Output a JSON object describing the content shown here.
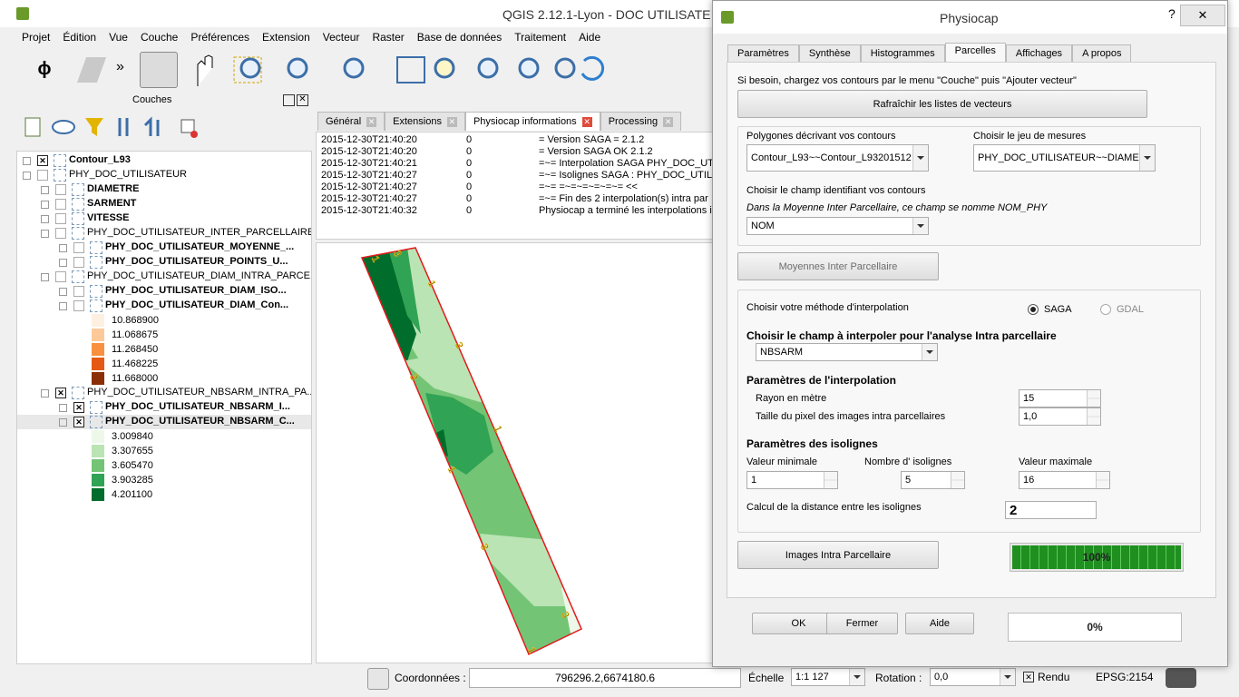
{
  "qgis": {
    "title": "QGIS 2.12.1-Lyon - DOC UTILISATE",
    "menu": [
      "Projet",
      "Édition",
      "Vue",
      "Couche",
      "Préférences",
      "Extension",
      "Vecteur",
      "Raster",
      "Base de données",
      "Traitement",
      "Aide"
    ],
    "toolbar": {
      "phi": "ϕ",
      "more": "»"
    },
    "layers_title": "Couches",
    "layers": [
      {
        "label": "Contour_L93",
        "depth": 0,
        "bold": true,
        "checked": true
      },
      {
        "label": "PHY_DOC_UTILISATEUR",
        "depth": 0,
        "bold": false,
        "checked": false
      },
      {
        "label": "DIAMETRE",
        "depth": 1,
        "bold": true,
        "checked": false
      },
      {
        "label": "SARMENT",
        "depth": 1,
        "bold": true,
        "checked": false
      },
      {
        "label": "VITESSE",
        "depth": 1,
        "bold": true,
        "checked": false
      },
      {
        "label": "PHY_DOC_UTILISATEUR_INTER_PARCELLAIRE",
        "depth": 1,
        "bold": false,
        "checked": false
      },
      {
        "label": "PHY_DOC_UTILISATEUR_MOYENNE_...",
        "depth": 2,
        "bold": true,
        "checked": false
      },
      {
        "label": "PHY_DOC_UTILISATEUR_POINTS_U...",
        "depth": 2,
        "bold": true,
        "checked": false
      },
      {
        "label": "PHY_DOC_UTILISATEUR_DIAM_INTRA_PARCE...",
        "depth": 1,
        "bold": false,
        "checked": false
      },
      {
        "label": "PHY_DOC_UTILISATEUR_DIAM_ISO...",
        "depth": 2,
        "bold": true,
        "checked": false
      },
      {
        "label": "PHY_DOC_UTILISATEUR_DIAM_Con...",
        "depth": 2,
        "bold": true,
        "checked": false
      },
      {
        "label": "10.868900",
        "swatch": "#fef0e1"
      },
      {
        "label": "11.068675",
        "swatch": "#fdc999"
      },
      {
        "label": "11.268450",
        "swatch": "#f9903f"
      },
      {
        "label": "11.468225",
        "swatch": "#e45a14"
      },
      {
        "label": "11.668000",
        "swatch": "#8a2e05"
      },
      {
        "label": "PHY_DOC_UTILISATEUR_NBSARM_INTRA_PA...",
        "depth": 1,
        "bold": false,
        "checked": true
      },
      {
        "label": "PHY_DOC_UTILISATEUR_NBSARM_I...",
        "depth": 2,
        "bold": true,
        "checked": true
      },
      {
        "label": "PHY_DOC_UTILISATEUR_NBSARM_C...",
        "depth": 2,
        "bold": true,
        "checked": true
      },
      {
        "label": "3.009840",
        "swatch": "#edf8e9"
      },
      {
        "label": "3.307655",
        "swatch": "#bae4b3"
      },
      {
        "label": "3.605470",
        "swatch": "#74c476"
      },
      {
        "label": "3.903285",
        "swatch": "#31a354"
      },
      {
        "label": "4.201100",
        "swatch": "#006d2c"
      }
    ],
    "tabs": [
      "Général",
      "Extensions",
      "Physiocap informations",
      "Processing"
    ],
    "active_tab": 2,
    "log": [
      [
        "2015-12-30T21:40:20",
        "0",
        "= Version SAGA = 2.1.2"
      ],
      [
        "2015-12-30T21:40:20",
        "0",
        "= Version SAGA OK 2.1.2"
      ],
      [
        "2015-12-30T21:40:21",
        "0",
        "=~= Interpolation SAGA PHY_DOC_UT"
      ],
      [
        "2015-12-30T21:40:27",
        "0",
        "=~= Isolignes SAGA : PHY_DOC_UTILI"
      ],
      [
        "2015-12-30T21:40:27",
        "0",
        "=~= =~=~=~=~=~= <<"
      ],
      [
        "2015-12-30T21:40:27",
        "0",
        "=~= Fin des 2 interpolation(s) intra par"
      ],
      [
        "2015-12-30T21:40:32",
        "0",
        "Physiocap a terminé les interpolations in"
      ]
    ],
    "map_labels": [
      "1",
      "3",
      "1",
      "3",
      "3",
      "1",
      "1",
      "3",
      "3",
      "1"
    ],
    "status": {
      "coord_label": "Coordonnées :",
      "coord_value": "796296.2,6674180.6",
      "scale_label": "Échelle",
      "scale_value": "1:1 127",
      "rotation_label": "Rotation :",
      "rotation_value": "0,0",
      "render_label": "Rendu",
      "crs": "EPSG:2154"
    }
  },
  "dialog": {
    "title": "Physiocap",
    "help": "?",
    "tabs": [
      "Paramètres",
      "Synthèse",
      "Histogrammes",
      "Parcelles",
      "Affichages",
      "A propos"
    ],
    "active_tab": 3,
    "hint": "Si besoin, chargez vos contours par le menu \"Couche\" puis \"Ajouter vecteur\"",
    "refresh_button": "Rafraîchir les listes de vecteurs",
    "polygons_label": "Polygones décrivant vos contours",
    "polygons_value": "Contour_L93~~Contour_L93201512",
    "measures_label": "Choisir le jeu de mesures",
    "measures_value": "PHY_DOC_UTILISATEUR~~DIAMETR",
    "id_field_label": "Choisir le champ identifiant vos contours",
    "id_field_note": "Dans la Moyenne Inter Parcellaire, ce champ se nomme NOM_PHY",
    "id_field_value": "NOM",
    "inter_button": "Moyennes Inter Parcellaire",
    "method_label": "Choisir votre méthode d'interpolation",
    "methods": [
      "SAGA",
      "GDAL"
    ],
    "methods_enabled": [
      true,
      false
    ],
    "method_selected": 0,
    "field_label": "Choisir le champ à interpoler pour l'analyse Intra parcellaire",
    "field_value": "NBSARM",
    "interp_params": "Paramètres de l'interpolation",
    "radius_label": "Rayon en mètre",
    "radius_value": "15",
    "pixel_label": "Taille du pixel des images intra parcellaires",
    "pixel_value": "1,0",
    "iso_params": "Paramètres des isolignes",
    "min_label": "Valeur minimale",
    "min_value": "1",
    "count_label": "Nombre d' isolignes",
    "count_value": "5",
    "max_label": "Valeur maximale",
    "max_value": "16",
    "distance_label": "Calcul de la distance entre les isolignes",
    "distance_value": "2",
    "images_button": "Images Intra Parcellaire",
    "progress_images": {
      "percent": 100,
      "label": "100%"
    },
    "ok": "OK",
    "close": "Fermer",
    "aide": "Aide",
    "progress_total": {
      "percent": 0,
      "label": "0%"
    }
  }
}
